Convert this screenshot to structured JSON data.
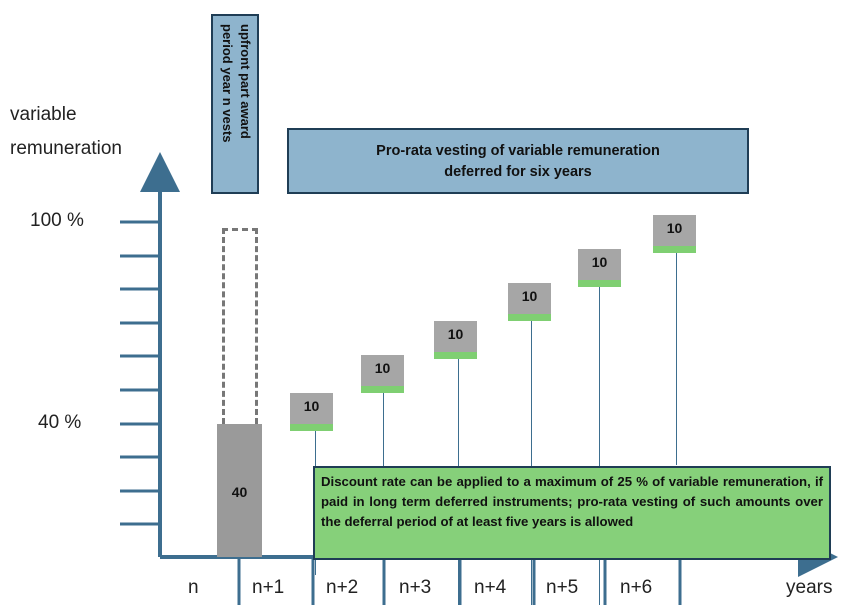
{
  "y_axis": {
    "label": "variable\nremuneration",
    "label_lines": [
      "variable",
      "remuneration"
    ],
    "tick_100": "100 %",
    "tick_40": "40 %"
  },
  "x_axis": {
    "labels": [
      "n",
      "n+1",
      "n+2",
      "n+3",
      "n+4",
      "n+5",
      "n+6"
    ],
    "unit": "years"
  },
  "upfront_box": {
    "line1": "upfront part award",
    "line2": "period year n vests"
  },
  "banner": {
    "line1": "Pro-rata vesting of variable remuneration",
    "line2": "deferred for six years"
  },
  "upfront_value": "40",
  "steps": [
    "10",
    "10",
    "10",
    "10",
    "10",
    "10"
  ],
  "green_note": "Discount rate can be applied to a maximum of 25 % of variable remuneration, if paid in long term deferred instruments; pro-rata vesting of such amounts over the deferral period  of at least five years is allowed",
  "colors": {
    "axis": "#3d6e8f",
    "banner_fill": "#8eb4cd",
    "note_fill": "#86d07a",
    "step_fill": "#a6a6a6",
    "step_strip": "#7fcf72"
  }
}
